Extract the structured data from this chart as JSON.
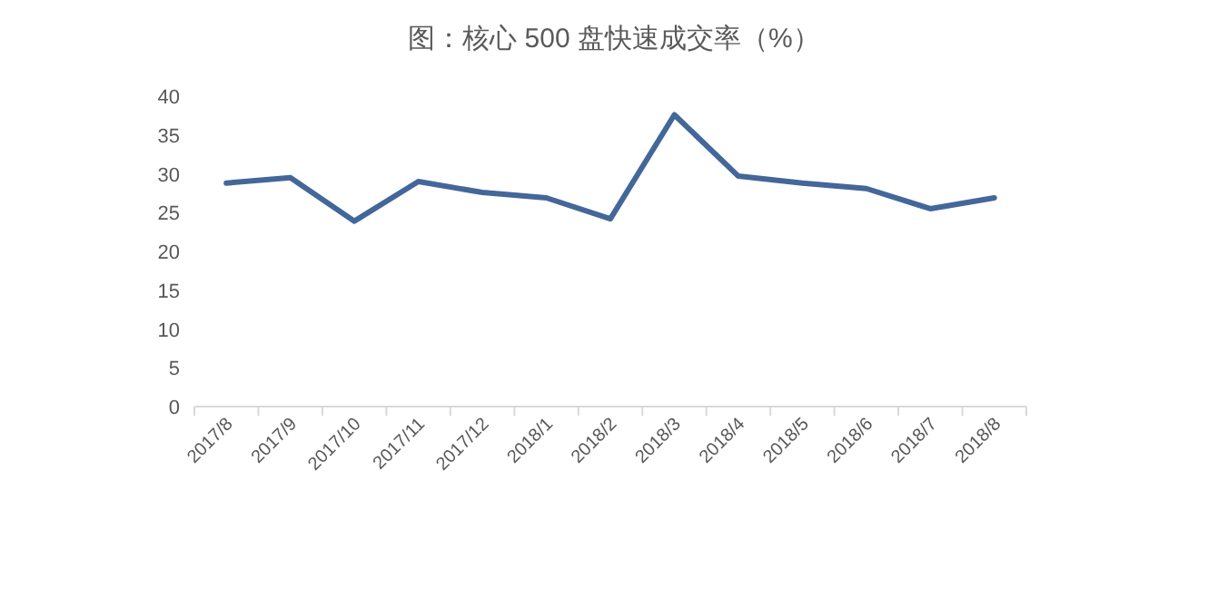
{
  "chart_data": {
    "type": "line",
    "title": "图：核心 500 盘快速成交率（%）",
    "categories": [
      "2017/8",
      "2017/9",
      "2017/10",
      "2017/11",
      "2017/12",
      "2018/1",
      "2018/2",
      "2018/3",
      "2018/4",
      "2018/5",
      "2018/6",
      "2018/7",
      "2018/8"
    ],
    "series": [
      {
        "color": "#44679a",
        "values": [
          28.8,
          29.5,
          23.9,
          29.0,
          27.6,
          26.9,
          24.2,
          37.6,
          29.7,
          28.8,
          28.1,
          25.5,
          26.9
        ]
      }
    ],
    "ylim": [
      0,
      40
    ],
    "yticks": [
      0,
      5,
      10,
      15,
      20,
      25,
      30,
      35,
      40
    ],
    "grid": false,
    "marker": "none",
    "line_style": "solid"
  }
}
